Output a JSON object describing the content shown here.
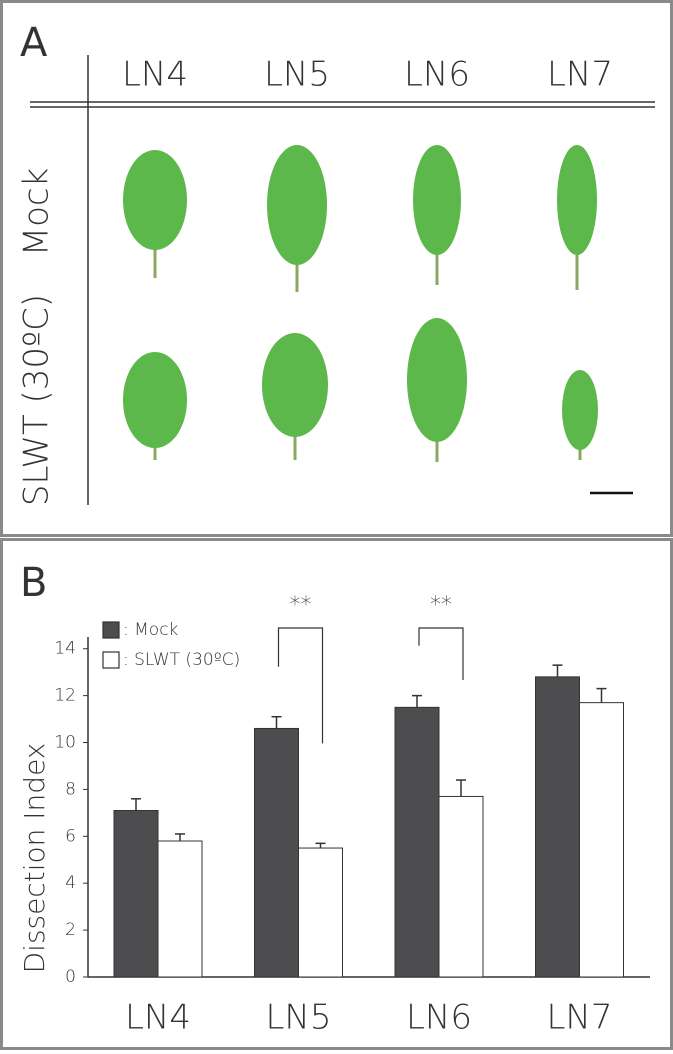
{
  "panel_a": {
    "label": "A",
    "columns": [
      "LN4",
      "LN5",
      "LN6",
      "LN7"
    ],
    "rows": [
      "Mock",
      "SLWT (30ºC)"
    ]
  },
  "chart_data": {
    "type": "bar",
    "panel_label": "B",
    "y_label": "Dissection Index",
    "categories": [
      "LN4",
      "LN5",
      "LN6",
      "LN7"
    ],
    "series": [
      {
        "name": ": Mock",
        "color": "#4d4d4f",
        "values": [
          7.1,
          10.6,
          11.5,
          12.8
        ],
        "errors": [
          0.5,
          0.5,
          0.5,
          0.5
        ]
      },
      {
        "name": ": SLWT (30ºC)",
        "color": "#ffffff",
        "values": [
          5.8,
          5.5,
          7.7,
          11.7
        ],
        "errors": [
          0.3,
          0.2,
          0.7,
          0.6
        ]
      }
    ],
    "annotations": [
      {
        "text": "**",
        "category": "LN5"
      },
      {
        "text": "**",
        "category": "LN6"
      }
    ],
    "ylim": [
      0,
      14.5
    ],
    "yticks": [
      0,
      2,
      4,
      6,
      8,
      10,
      12,
      14
    ],
    "grid": false,
    "legend": "top-left"
  }
}
